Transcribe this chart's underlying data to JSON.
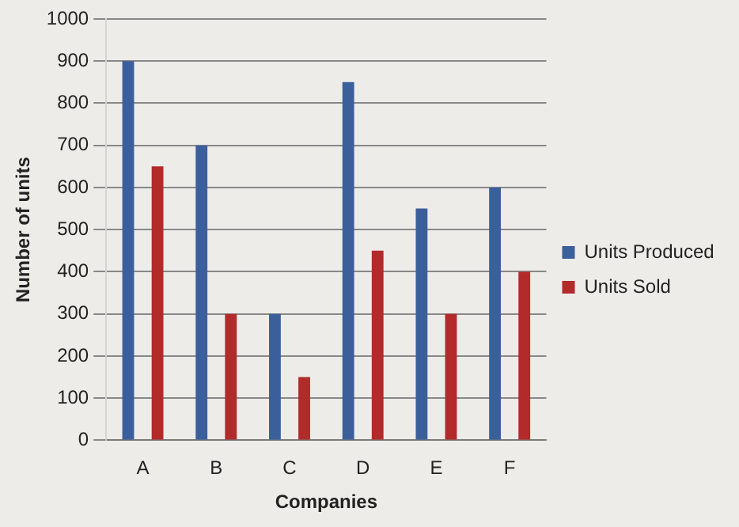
{
  "chart_data": {
    "type": "bar",
    "xlabel": "Companies",
    "ylabel": "Number of units",
    "categories": [
      "A",
      "B",
      "C",
      "D",
      "E",
      "F"
    ],
    "series": [
      {
        "name": "Units Produced",
        "color": "#3b5f9a",
        "values": [
          900,
          700,
          300,
          850,
          550,
          600
        ]
      },
      {
        "name": "Units Sold",
        "color": "#b22a2a",
        "values": [
          650,
          300,
          150,
          450,
          300,
          400
        ]
      }
    ],
    "ylim": [
      0,
      1000
    ],
    "yticks": [
      0,
      100,
      200,
      300,
      400,
      500,
      600,
      700,
      800,
      900,
      1000
    ],
    "grid": "y",
    "legend": "right"
  }
}
